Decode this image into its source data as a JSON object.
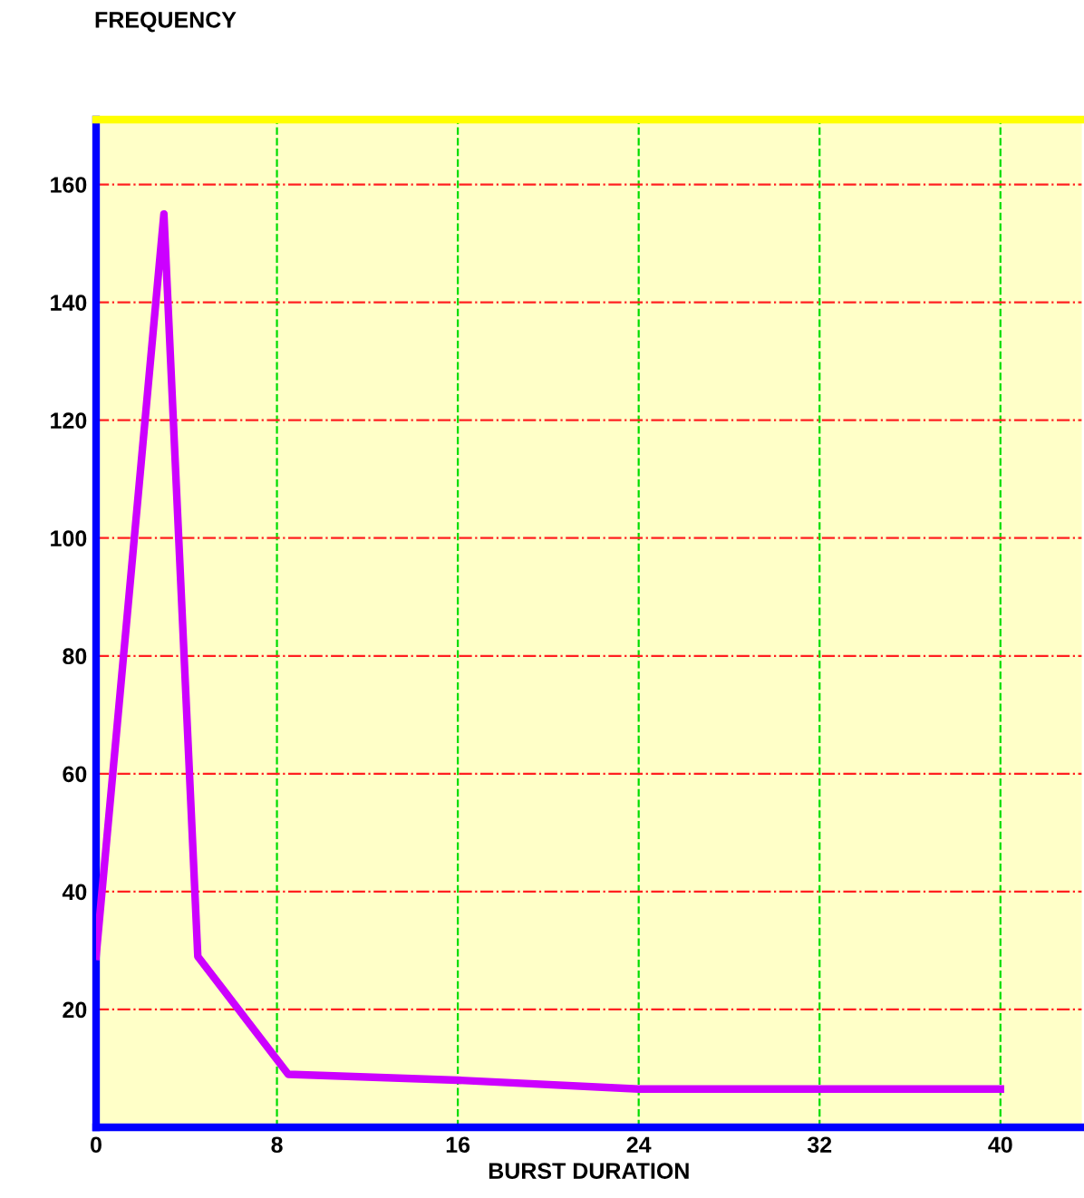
{
  "chart_data": {
    "type": "line",
    "ylabel": "FREQUENCY",
    "xlabel": "BURST DURATION",
    "x": [
      0,
      3,
      4.5,
      8.5,
      16,
      24,
      40
    ],
    "series": [
      {
        "color": "#cc00ff",
        "values": [
          29,
          155,
          29,
          9,
          8,
          6.5,
          6.5
        ]
      }
    ],
    "xlim": [
      0,
      43.6
    ],
    "ylim": [
      0,
      171
    ],
    "xticks": [
      0,
      8,
      16,
      24,
      32,
      40
    ],
    "yticks": [
      20,
      40,
      60,
      80,
      100,
      120,
      140,
      160
    ],
    "grid": true,
    "marker": "none",
    "line_style": "solid"
  }
}
